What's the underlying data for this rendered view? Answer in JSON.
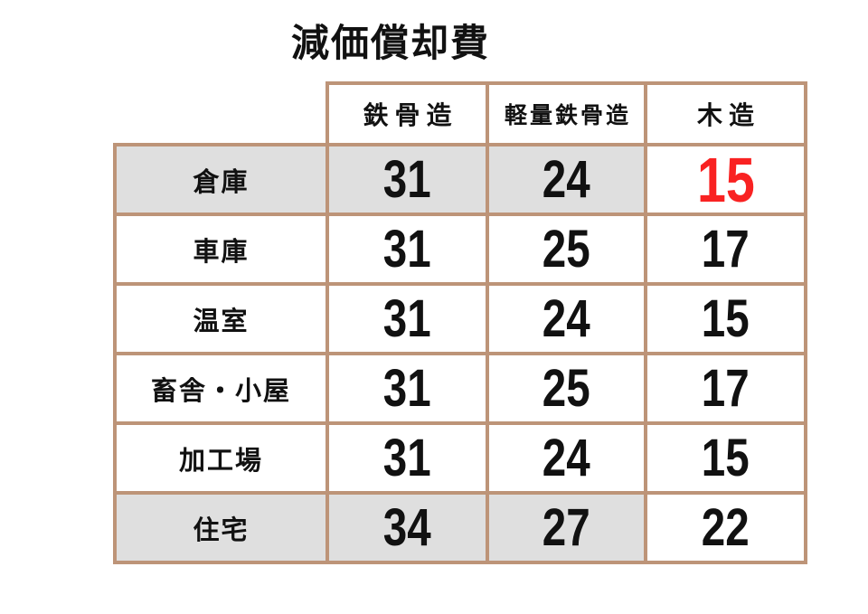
{
  "title": "減価償却費",
  "colors": {
    "background": "#ffffff",
    "border": "#bd9478",
    "row_shade": "#dfdfdf",
    "text": "#111111",
    "highlight_red": "#f92222"
  },
  "chart_data": {
    "type": "table",
    "title": "減価償却費",
    "columns": [
      "鉄骨造",
      "軽量鉄骨造",
      "木造"
    ],
    "row_labels": [
      "倉庫",
      "車庫",
      "温室",
      "畜舎・小屋",
      "加工場",
      "住宅"
    ],
    "values": [
      [
        31,
        24,
        15
      ],
      [
        31,
        25,
        17
      ],
      [
        31,
        24,
        15
      ],
      [
        31,
        25,
        17
      ],
      [
        31,
        24,
        15
      ],
      [
        34,
        27,
        22
      ]
    ],
    "shaded_rows": [
      "倉庫",
      "住宅"
    ],
    "highlight_cell": {
      "row": "倉庫",
      "column": "木造",
      "value": 15,
      "color": "#f92222"
    },
    "legend_position": "none",
    "grid": true
  }
}
